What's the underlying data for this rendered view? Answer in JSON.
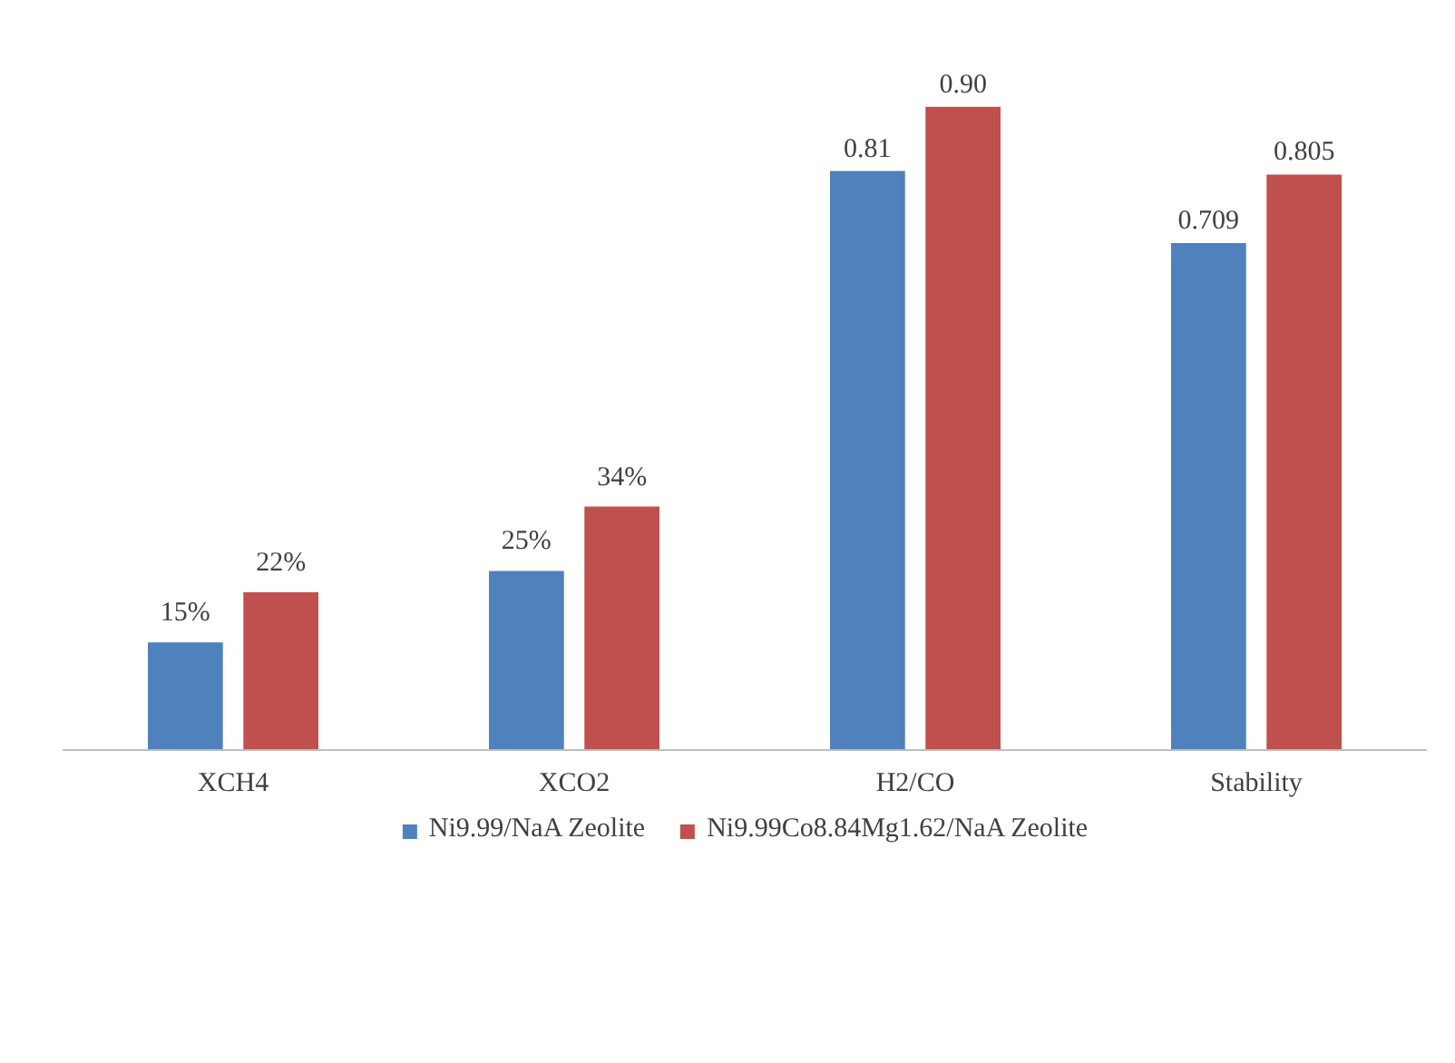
{
  "chart_data": {
    "type": "bar",
    "categories": [
      "XCH4",
      "XCO2",
      "H2/CO",
      "Stability"
    ],
    "series": [
      {
        "name": "Ni9.99/NaA Zeolite",
        "color": "#4f81bd",
        "values": [
          0.15,
          0.25,
          0.81,
          0.709
        ],
        "value_labels": [
          "15%",
          "25%",
          "0.81",
          "0.709"
        ]
      },
      {
        "name": "Ni9.99Co8.84Mg1.62/NaA Zeolite",
        "color": "#c0504d",
        "values": [
          0.22,
          0.34,
          0.9,
          0.805
        ],
        "value_labels": [
          "22%",
          "34%",
          "0.90",
          "0.805"
        ]
      }
    ],
    "legend": "bottom",
    "grid": false
  }
}
